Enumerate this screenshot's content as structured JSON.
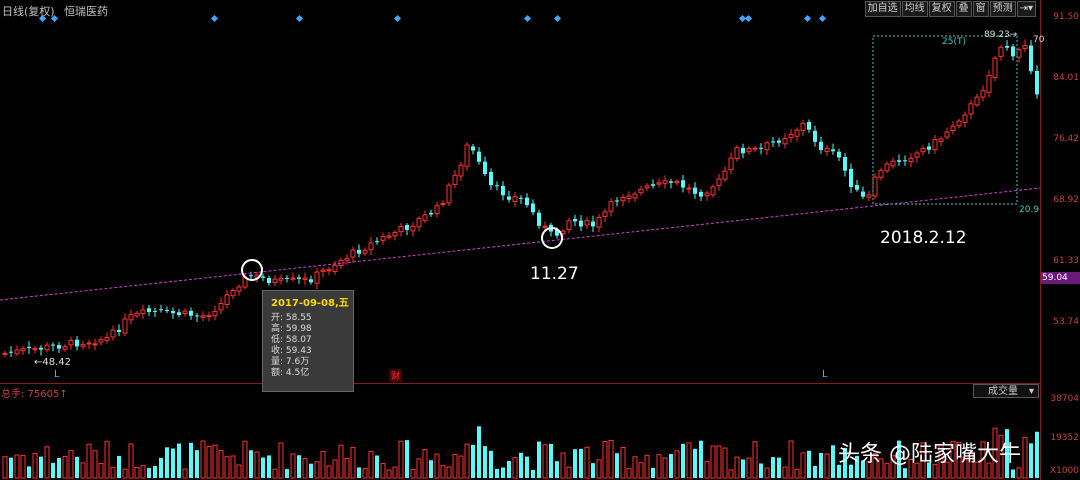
{
  "header": {
    "period_label": "日线(复权)",
    "stock_name": "恒瑞医药"
  },
  "toolbar": {
    "buttons": [
      "加自选",
      "均线",
      "复权",
      "叠",
      "窗",
      "预测",
      "⇥▾"
    ]
  },
  "price_axis": {
    "ticks": [
      "91.50",
      "84.01",
      "76.42",
      "68.92",
      "61.33",
      "53.74"
    ],
    "current_price": "59.04"
  },
  "annotations": {
    "low_label": "48.42",
    "high_label": "89.23",
    "high_label2": "70",
    "box_count": "25(T)",
    "box_bottom": "20.9",
    "date_mark_1": "11.27",
    "date_mark_2": "2018.2.12",
    "l_marker": "L",
    "fin_marker": "财"
  },
  "tooltip": {
    "date": "2017-09-08,五",
    "rows": [
      "开: 58.55",
      "高: 59.98",
      "低: 58.07",
      "收: 59.43",
      "量: 7.6万",
      "额: 4.5亿"
    ]
  },
  "volume_panel": {
    "label": "总手: 75605",
    "select_value": "成交量",
    "ticks": [
      "38704",
      "19352",
      "X1000"
    ]
  },
  "watermark": "头条 @陆家嘴大牛",
  "colors": {
    "up": "#ff3030",
    "down": "#54fcfc",
    "trend": "#d040d0",
    "axis": "#8b1a1a"
  }
}
